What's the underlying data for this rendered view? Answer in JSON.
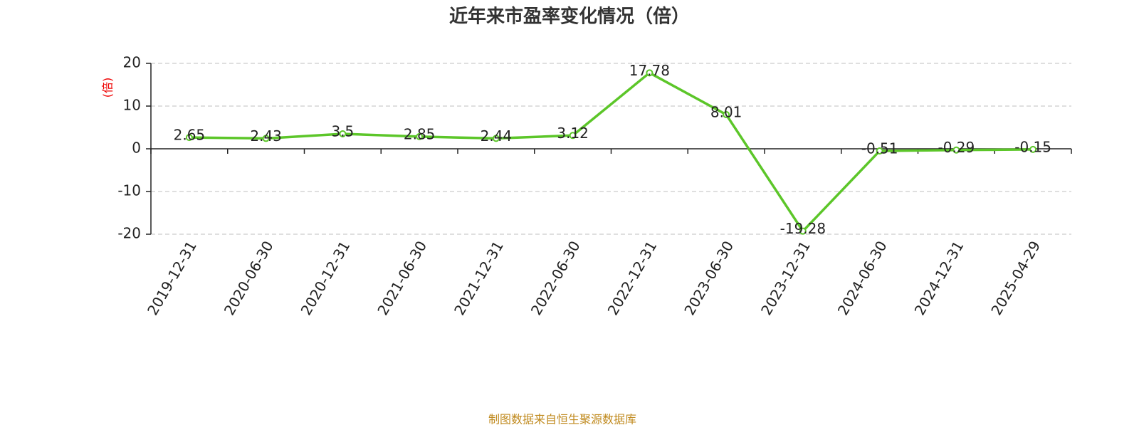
{
  "chart_data": {
    "type": "line",
    "title": "近年来市盈率变化情况（倍）",
    "y_label": "(倍)",
    "source": "制图数据来自恒生聚源数据库",
    "categories": [
      "2019-12-31",
      "2020-06-30",
      "2020-12-31",
      "2021-06-30",
      "2021-12-31",
      "2022-06-30",
      "2022-12-31",
      "2023-06-30",
      "2023-12-31",
      "2024-06-30",
      "2024-12-31",
      "2025-04-29"
    ],
    "values": [
      2.65,
      2.43,
      3.5,
      2.85,
      2.44,
      3.12,
      17.78,
      8.01,
      -19.28,
      -0.51,
      -0.29,
      -0.15
    ],
    "color": "#5cc629",
    "ylim": [
      -20,
      20
    ],
    "yticks": [
      -20,
      -10,
      0,
      10,
      20
    ],
    "grid": true
  }
}
